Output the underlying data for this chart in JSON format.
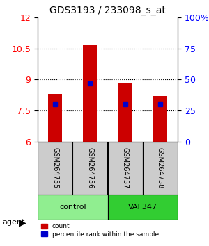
{
  "title": "GDS3193 / 233098_s_at",
  "samples": [
    "GSM264755",
    "GSM264756",
    "GSM264757",
    "GSM264758"
  ],
  "groups": [
    "control",
    "control",
    "VAF347",
    "VAF347"
  ],
  "group_labels": [
    "control",
    "VAF347"
  ],
  "group_colors": [
    "#90EE90",
    "#32CD32"
  ],
  "count_values": [
    8.3,
    10.65,
    8.8,
    8.2
  ],
  "percentile_values": [
    30,
    47,
    30,
    30
  ],
  "ylim_left": [
    6,
    12
  ],
  "ylim_right": [
    0,
    100
  ],
  "yticks_left": [
    6,
    7.5,
    9,
    10.5,
    12
  ],
  "yticks_right": [
    0,
    25,
    50,
    75,
    100
  ],
  "ytick_labels_right": [
    "0",
    "25",
    "50",
    "75",
    "100%"
  ],
  "bar_color": "#CC0000",
  "dot_color": "#0000CC",
  "gridline_y": [
    7.5,
    9,
    10.5
  ],
  "bar_width": 0.4
}
